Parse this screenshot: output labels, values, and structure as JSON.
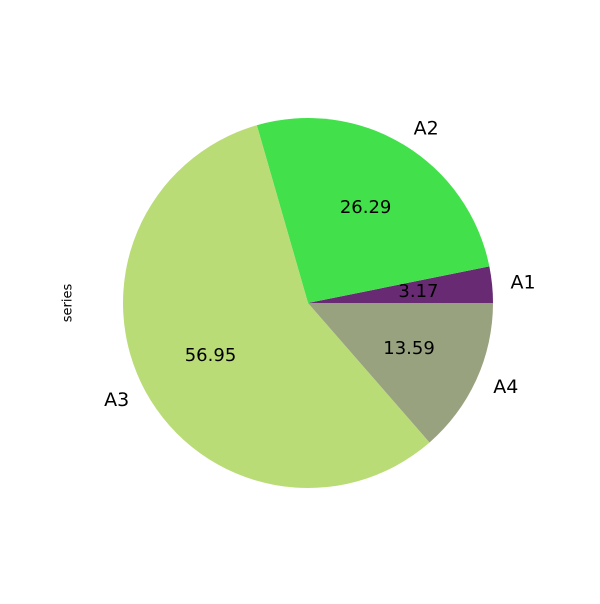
{
  "chart_data": {
    "type": "pie",
    "ylabel": "series",
    "categories": [
      "A1",
      "A2",
      "A3",
      "A4"
    ],
    "values": [
      3.17,
      26.29,
      56.95,
      13.59
    ],
    "value_labels": [
      "3.17",
      "26.29",
      "56.95",
      "13.59"
    ],
    "colors": [
      "#672a73",
      "#42e04a",
      "#badc77",
      "#98a27f"
    ],
    "start_angle_deg": 0,
    "direction": "counterclockwise",
    "legend": "none"
  }
}
